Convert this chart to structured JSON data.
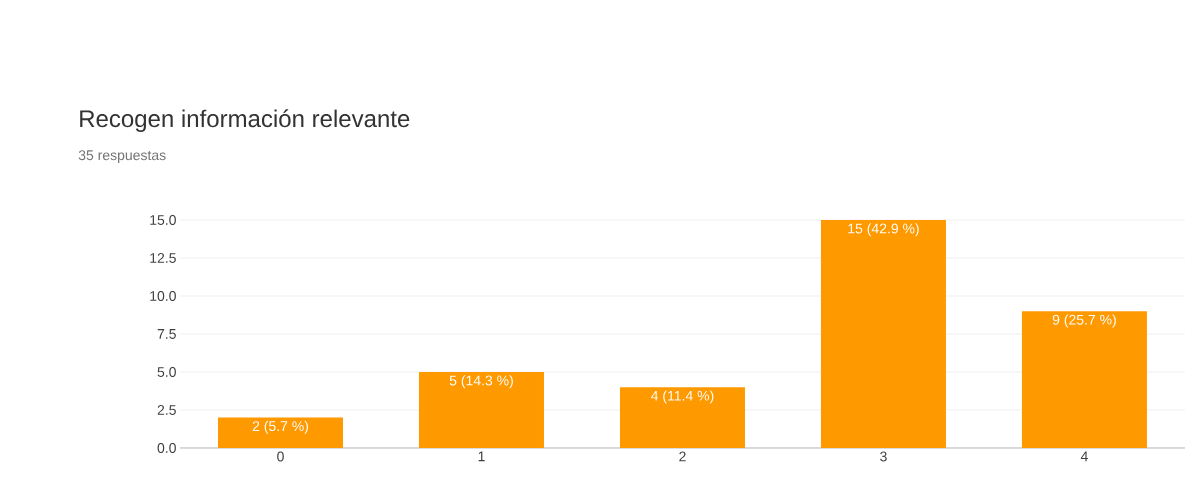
{
  "chart_data": {
    "type": "bar",
    "title": "Recogen información relevante",
    "subtitle": "35 respuestas",
    "categories": [
      "0",
      "1",
      "2",
      "3",
      "4"
    ],
    "values": [
      2,
      5,
      4,
      15,
      9
    ],
    "value_labels": [
      "2 (5.7 %)",
      "5 (14.3 %)",
      "4 (11.4 %)",
      "15 (42.9 %)",
      "9 (25.7 %)"
    ],
    "color": "#ff9900",
    "ylim": [
      0,
      15
    ],
    "yticks": [
      {
        "value": 0,
        "label": "0.0"
      },
      {
        "value": 2.5,
        "label": "2.5"
      },
      {
        "value": 5,
        "label": "5.0"
      },
      {
        "value": 7.5,
        "label": "7.5"
      },
      {
        "value": 10,
        "label": "10.0"
      },
      {
        "value": 12.5,
        "label": "12.5"
      },
      {
        "value": 15,
        "label": "15.0"
      }
    ],
    "grid": "y"
  }
}
